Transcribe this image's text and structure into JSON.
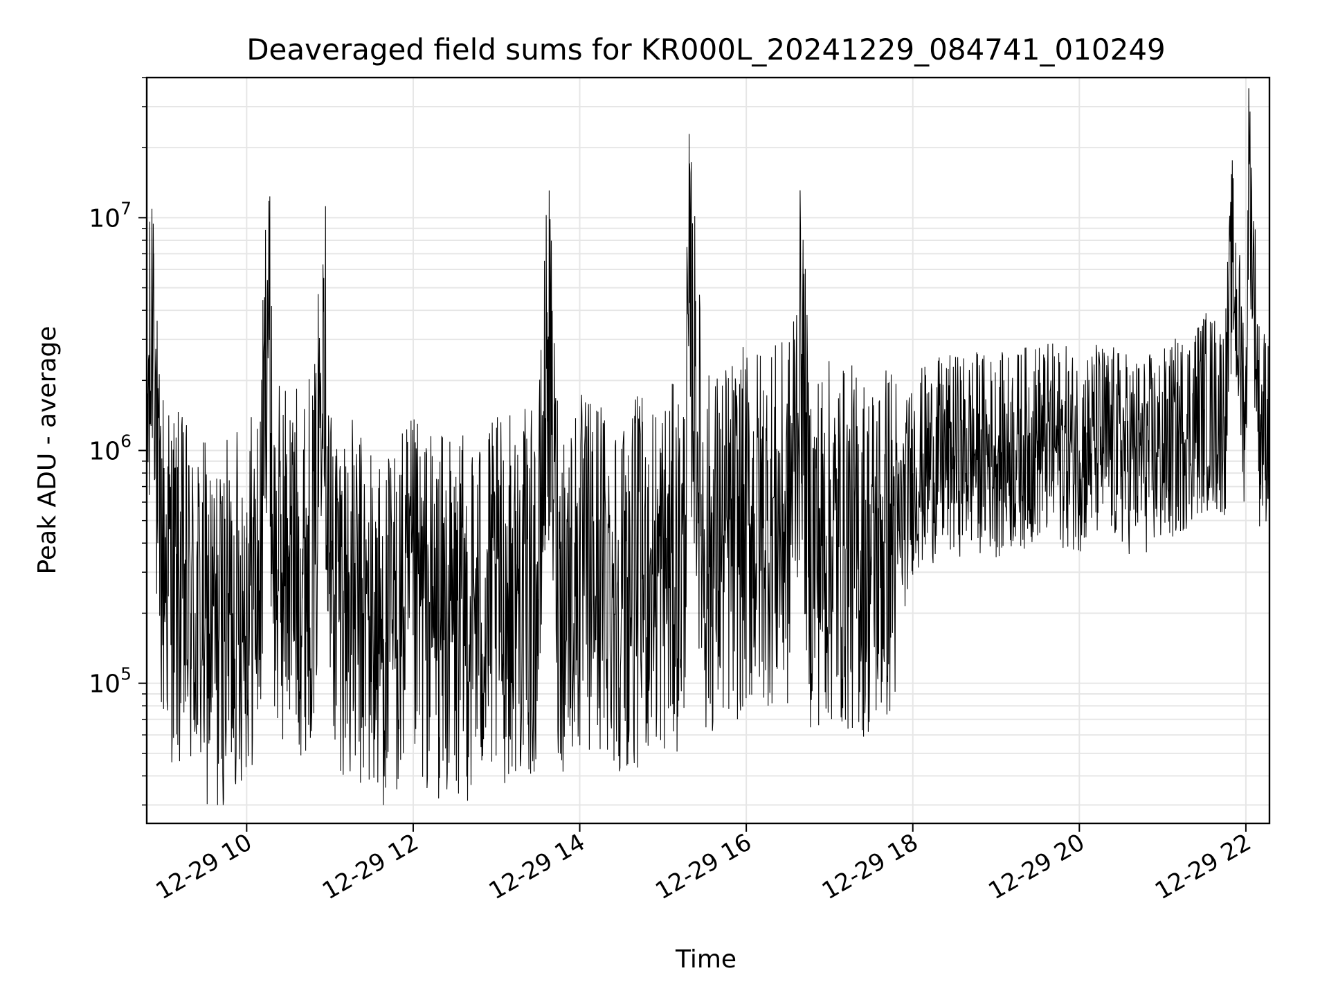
{
  "chart_data": {
    "type": "line",
    "title": "Deaveraged field sums for KR000L_20241229_084741_010249",
    "xlabel": "Time",
    "ylabel": "Peak ADU - average",
    "yscale": "log",
    "xlim": [
      "12-29 08:48",
      "12-29 22:17"
    ],
    "ylim": [
      25000,
      40000000
    ],
    "grid": true,
    "line_color": "#000000",
    "x_ticks": [
      {
        "label": "12-29 10",
        "hour": 10
      },
      {
        "label": "12-29 12",
        "hour": 12
      },
      {
        "label": "12-29 14",
        "hour": 14
      },
      {
        "label": "12-29 16",
        "hour": 16
      },
      {
        "label": "12-29 18",
        "hour": 18
      },
      {
        "label": "12-29 20",
        "hour": 20
      },
      {
        "label": "12-29 22",
        "hour": 22
      }
    ],
    "y_ticks": [
      {
        "base": "10",
        "exp": "5",
        "value": 100000
      },
      {
        "base": "10",
        "exp": "6",
        "value": 1000000
      },
      {
        "base": "10",
        "exp": "7",
        "value": 10000000
      }
    ],
    "series": [
      {
        "x": [
          "08:49",
          "08:50",
          "08:53",
          "08:56",
          "09:00",
          "09:10",
          "09:20",
          "09:30",
          "09:40",
          "09:50",
          "10:00",
          "10:10",
          "10:15",
          "10:20",
          "10:30",
          "10:40",
          "10:50",
          "10:55",
          "11:00",
          "11:10",
          "11:20",
          "11:30",
          "11:40",
          "11:50",
          "12:00",
          "12:15",
          "12:30",
          "12:45",
          "13:00",
          "13:15",
          "13:30",
          "13:37",
          "13:45",
          "14:00",
          "14:15",
          "14:30",
          "14:45",
          "15:00",
          "15:15",
          "15:19",
          "15:30",
          "15:45",
          "16:00",
          "16:15",
          "16:30",
          "16:40",
          "16:45",
          "17:00",
          "17:15",
          "17:30",
          "17:40",
          "17:50",
          "18:00",
          "18:15",
          "18:30",
          "18:45",
          "19:00",
          "19:15",
          "19:30",
          "19:45",
          "20:00",
          "20:15",
          "20:30",
          "20:45",
          "21:00",
          "21:15",
          "21:30",
          "21:45",
          "21:50",
          "22:00",
          "22:02",
          "22:10",
          "22:17"
        ],
        "y": [
          1800000,
          1500000,
          7000000,
          400000,
          350000,
          250000,
          200000,
          180000,
          150000,
          200000,
          250000,
          280000,
          5400000,
          300000,
          350000,
          300000,
          400000,
          6300000,
          300000,
          250000,
          200000,
          180000,
          150000,
          200000,
          220000,
          200000,
          180000,
          200000,
          220000,
          250000,
          230000,
          3000000,
          250000,
          280000,
          300000,
          250000,
          280000,
          300000,
          320000,
          4300000,
          350000,
          400000,
          450000,
          500000,
          450000,
          2600000,
          400000,
          400000,
          380000,
          350000,
          400000,
          450000,
          800000,
          900000,
          950000,
          1000000,
          950000,
          1000000,
          1100000,
          1050000,
          1000000,
          1100000,
          1000000,
          950000,
          1000000,
          1200000,
          1500000,
          1400000,
          6800000,
          1300000,
          19000000,
          1200000,
          1400000
        ]
      }
    ]
  }
}
